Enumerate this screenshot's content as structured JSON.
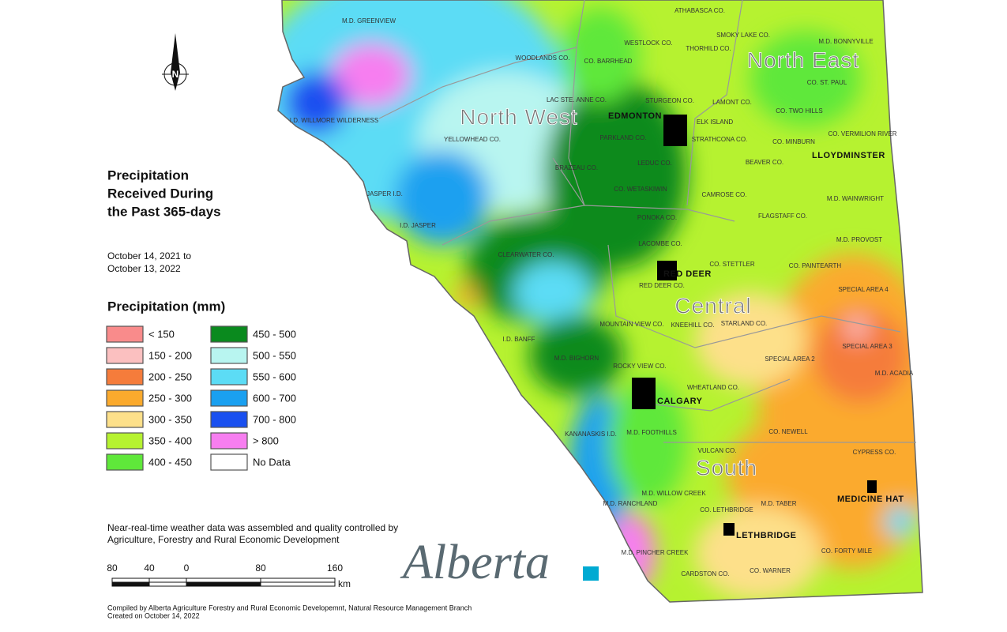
{
  "title": [
    "Precipitation",
    "Received During",
    "the Past 365-days"
  ],
  "dates": [
    "October 14, 2021 to",
    "October 13, 2022"
  ],
  "compass": "N",
  "legend": {
    "title": "Precipitation (mm)",
    "items": [
      {
        "label": "< 150",
        "color": "#f98b8b"
      },
      {
        "label": "150 - 200",
        "color": "#fbc0c0"
      },
      {
        "label": "200 - 250",
        "color": "#f57c3b"
      },
      {
        "label": "250 - 300",
        "color": "#fbaa2d"
      },
      {
        "label": "300 - 350",
        "color": "#fde08a"
      },
      {
        "label": "350 - 400",
        "color": "#b6f230"
      },
      {
        "label": "400 - 450",
        "color": "#5fe83a"
      },
      {
        "label": "450 - 500",
        "color": "#0a8a1e"
      },
      {
        "label": "500 - 550",
        "color": "#b8f5f0"
      },
      {
        "label": "550 - 600",
        "color": "#5cdcf5"
      },
      {
        "label": "600 - 700",
        "color": "#1aa0f0"
      },
      {
        "label": "700 - 800",
        "color": "#1a50f0"
      },
      {
        "label": "> 800",
        "color": "#f77ef0"
      },
      {
        "label": "No Data",
        "color": "#ffffff"
      }
    ]
  },
  "note": [
    "Near-real-time weather data was assembled and quality controlled by",
    "Agriculture, Forestry and Rural Economic Development"
  ],
  "scale": {
    "labels": [
      "80",
      "40",
      "0",
      "80",
      "160"
    ],
    "unit": "km"
  },
  "credits": [
    "Compiled by Alberta Agriculture Forestry and Rural Economic Developemnt, Natural Resource Management Branch",
    "Created on October 14, 2022"
  ],
  "logo": "Alberta",
  "regions": [
    "North West",
    "North East",
    "Central",
    "South"
  ],
  "cities": [
    "EDMONTON",
    "LLOYDMINSTER",
    "RED DEER",
    "CALGARY",
    "MEDICINE HAT",
    "LETHBRIDGE"
  ],
  "counties": [
    "M.D. GREENVIEW",
    "WOODLANDS CO.",
    "ATHABASCA CO.",
    "WESTLOCK CO.",
    "SMOKY LAKE CO.",
    "THORHILD CO.",
    "CO. BARRHEAD",
    "M.D. BONNYVILLE",
    "CO. ST. PAUL",
    "LAC STE. ANNE CO.",
    "STURGEON CO.",
    "LAMONT CO.",
    "ELK ISLAND",
    "CO. TWO HILLS",
    "I.D. WILLMORE WILDERNESS",
    "YELLOWHEAD CO.",
    "PARKLAND CO.",
    "STRATHCONA CO.",
    "CO. MINBURN",
    "CO. VERMILION RIVER",
    "BRAZEAU CO.",
    "LEDUC CO.",
    "BEAVER CO.",
    "CO. WETASKIWIN",
    "CAMROSE CO.",
    "JASPER I.D.",
    "M.D. WAINWRIGHT",
    "PONOKA CO.",
    "FLAGSTAFF CO.",
    "I.D. JASPER",
    "M.D. PROVOST",
    "LACOMBE CO.",
    "CLEARWATER CO.",
    "CO. STETTLER",
    "CO. PAINTEARTH",
    "RED DEER CO.",
    "SPECIAL AREA 4",
    "MOUNTAIN VIEW CO.",
    "KNEEHILL CO.",
    "STARLAND CO.",
    "I.D. BANFF",
    "SPECIAL AREA 3",
    "M.D. BIGHORN",
    "SPECIAL AREA 2",
    "ROCKY VIEW CO.",
    "M.D. ACADIA",
    "WHEATLAND CO.",
    "KANANASKIS I.D.",
    "M.D. FOOTHILLS",
    "CO. NEWELL",
    "VULCAN CO.",
    "CYPRESS CO.",
    "M.D. WILLOW CREEK",
    "M.D. RANCHLAND",
    "M.D. TABER",
    "CO. LETHBRIDGE",
    "CO. FORTY MILE",
    "M.D. PINCHER CREEK",
    "CARDSTON CO.",
    "CO. WARNER"
  ]
}
